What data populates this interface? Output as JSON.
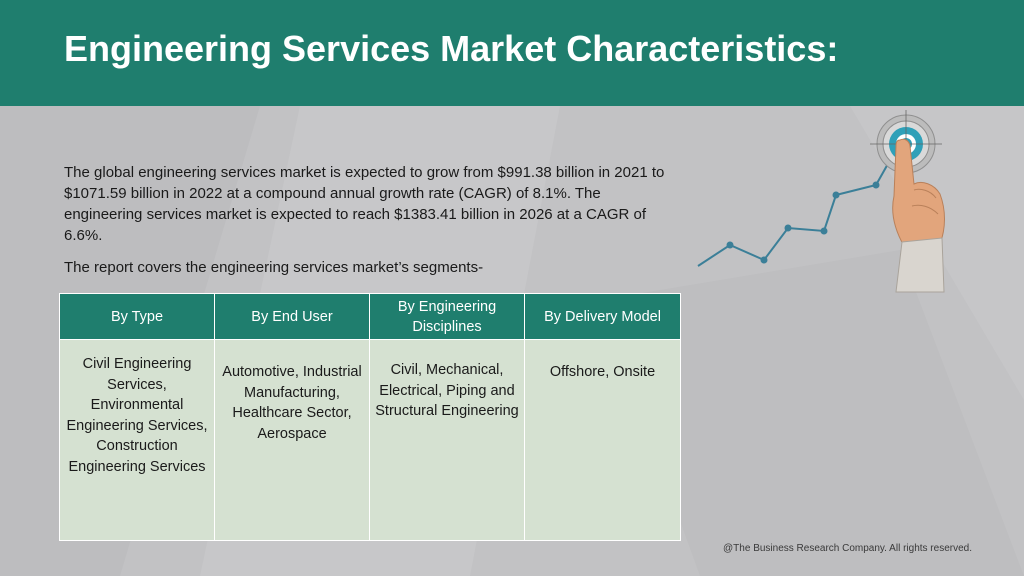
{
  "header": {
    "title": "Engineering Services Market Characteristics:"
  },
  "intro": {
    "paragraph": "The global engineering services market is expected to grow from $991.38 billion in 2021 to $1071.59 billion in 2022 at a compound annual growth rate (CAGR) of 8.1%. The engineering services market is expected to reach $1383.41 billion in 2026 at a CAGR of 6.6%.",
    "segments_note": "The report covers the engineering services market’s segments-"
  },
  "table": {
    "headers": [
      "By Type",
      "By End User",
      "By Engineering Disciplines",
      "By Delivery Model"
    ],
    "cells": [
      "Civil Engineering Services, Environmental Engineering Services, Construction Engineering Services",
      "Automotive, Industrial Manufacturing, Healthcare Sector, Aerospace",
      "Civil, Mechanical, Electrical, Piping and Structural Engineering",
      "Offshore, Onsite"
    ]
  },
  "illustration": {
    "icon": "growth-target-hand-icon",
    "colors": {
      "line": "#3b7f98",
      "target_ring": "#2fa0b8",
      "target_center": "#ffffff",
      "skin": "#e2a57c",
      "sleeve": "#d9d5cf"
    }
  },
  "footer": {
    "copyright": "@The Business Research Company. All rights reserved."
  },
  "theme": {
    "header_bg": "#1f7e6e",
    "table_header_bg": "#1f7e6e",
    "table_cell_bg": "#d5e1d1",
    "page_bg": "#c2c2c4"
  }
}
